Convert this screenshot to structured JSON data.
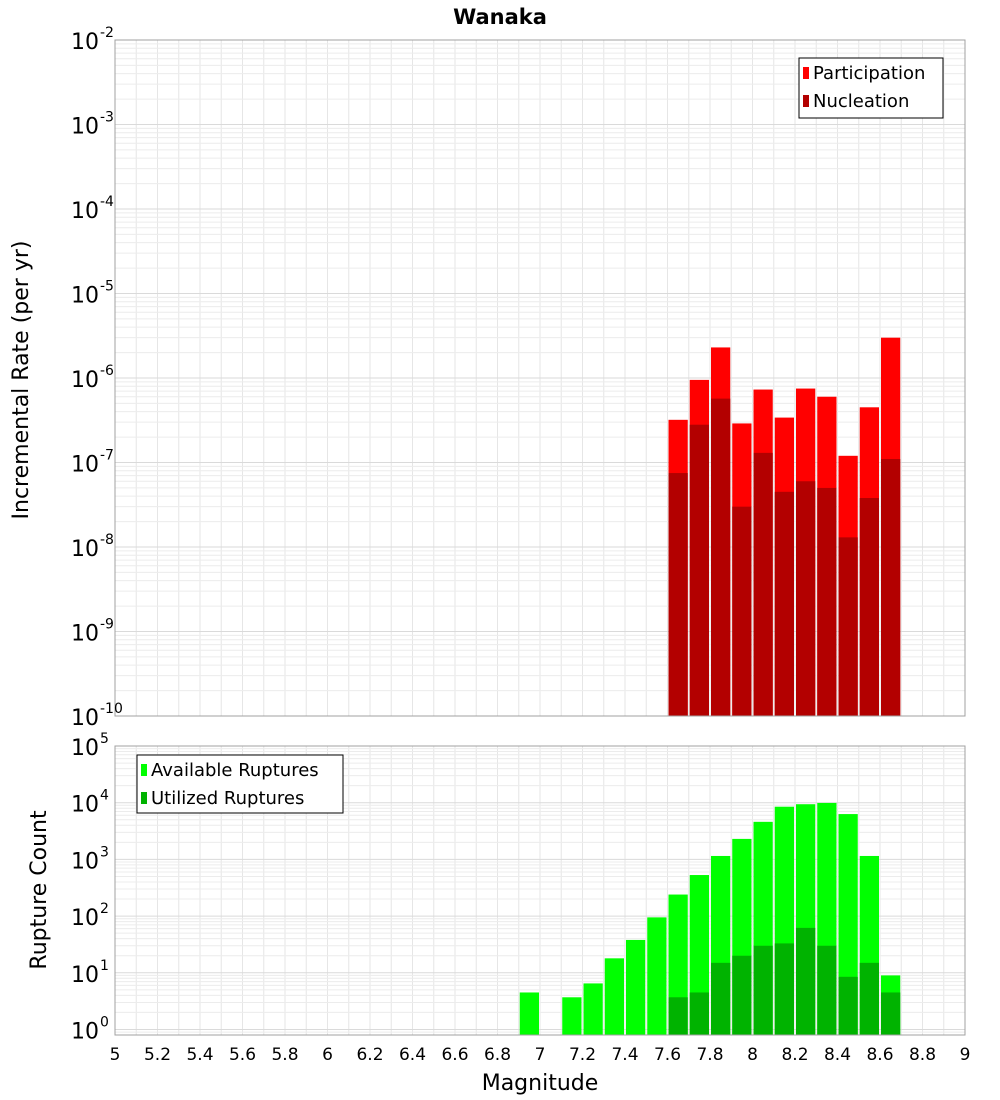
{
  "chart_data": [
    {
      "type": "bar",
      "title": "Wanaka",
      "xlabel": "",
      "ylabel": "Incremental Rate (per yr)",
      "yscale": "log",
      "ylim": [
        1e-10,
        0.01
      ],
      "xlim": [
        5,
        9
      ],
      "grid": true,
      "legend_position": "top-right",
      "y_ticks": [
        {
          "base": "10",
          "exp": "-2"
        },
        {
          "base": "10",
          "exp": "-3"
        },
        {
          "base": "10",
          "exp": "-4"
        },
        {
          "base": "10",
          "exp": "-5"
        },
        {
          "base": "10",
          "exp": "-6"
        },
        {
          "base": "10",
          "exp": "-7"
        },
        {
          "base": "10",
          "exp": "-8"
        },
        {
          "base": "10",
          "exp": "-9"
        },
        {
          "base": "10",
          "exp": "-10"
        }
      ],
      "x": [
        7.65,
        7.75,
        7.85,
        7.95,
        8.05,
        8.15,
        8.25,
        8.35,
        8.45,
        8.55,
        8.65
      ],
      "series": [
        {
          "name": "Participation",
          "color": "#ff0000",
          "values": [
            3.2e-07,
            9.5e-07,
            2.3e-06,
            2.9e-07,
            7.3e-07,
            3.4e-07,
            7.5e-07,
            6e-07,
            1.2e-07,
            4.5e-07,
            3e-06
          ]
        },
        {
          "name": "Nucleation",
          "color": "#b30000",
          "values": [
            7.5e-08,
            2.8e-07,
            5.7e-07,
            3e-08,
            1.3e-07,
            4.5e-08,
            6e-08,
            5e-08,
            1.3e-08,
            3.8e-08,
            1.1e-07
          ]
        }
      ]
    },
    {
      "type": "bar",
      "title": "",
      "xlabel": "Magnitude",
      "ylabel": "Rupture Count",
      "yscale": "log",
      "ylim": [
        0.8,
        100000.0
      ],
      "xlim": [
        5,
        9
      ],
      "grid": true,
      "legend_position": "top-left",
      "y_ticks": [
        {
          "base": "10",
          "exp": "5"
        },
        {
          "base": "10",
          "exp": "4"
        },
        {
          "base": "10",
          "exp": "3"
        },
        {
          "base": "10",
          "exp": "2"
        },
        {
          "base": "10",
          "exp": "1"
        },
        {
          "base": "10",
          "exp": "0"
        }
      ],
      "x_ticks": [
        "5",
        "5.2",
        "5.4",
        "5.6",
        "5.8",
        "6",
        "6.2",
        "6.4",
        "6.6",
        "6.8",
        "7",
        "7.2",
        "7.4",
        "7.6",
        "7.8",
        "8",
        "8.2",
        "8.4",
        "8.6",
        "8.8",
        "9"
      ],
      "x": [
        6.95,
        7.15,
        7.25,
        7.35,
        7.45,
        7.55,
        7.65,
        7.75,
        7.85,
        7.95,
        8.05,
        8.15,
        8.25,
        8.35,
        8.45,
        8.55,
        8.65
      ],
      "series": [
        {
          "name": "Available Ruptures",
          "color": "#00ff00",
          "values": [
            4.5,
            3.7,
            6.5,
            18,
            38,
            95,
            240,
            530,
            1150,
            2300,
            4600,
            8500,
            9400,
            9900,
            6300,
            1150,
            9
          ]
        },
        {
          "name": "Utilized Ruptures",
          "color": "#00b300",
          "values": [
            null,
            null,
            null,
            null,
            null,
            null,
            3.7,
            4.5,
            15,
            20,
            30,
            33,
            62,
            30,
            8.5,
            15,
            4.5
          ]
        }
      ]
    }
  ]
}
